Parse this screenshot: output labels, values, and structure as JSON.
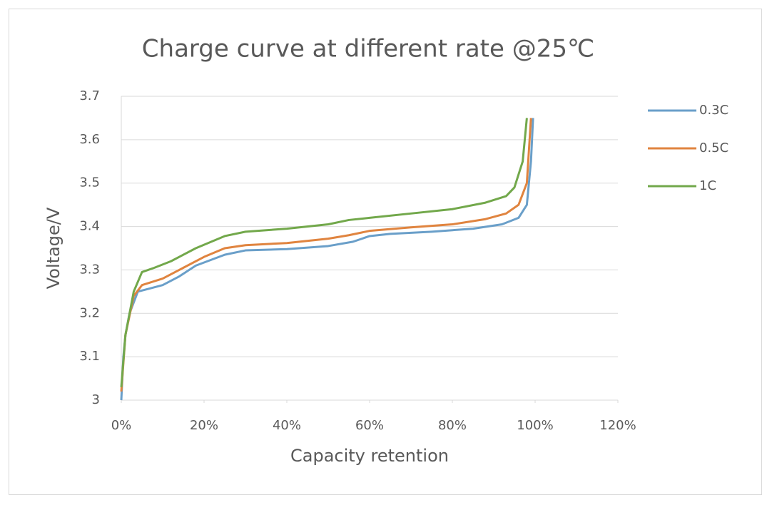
{
  "chart_data": {
    "type": "line",
    "title": "Charge curve at different rate @25℃",
    "x_label": "Capacity retention",
    "y_label": "Voltage/V",
    "xlim": [
      0,
      120
    ],
    "xticks": [
      {
        "value": 0,
        "label": "0%"
      },
      {
        "value": 20,
        "label": "20%"
      },
      {
        "value": 40,
        "label": "40%"
      },
      {
        "value": 60,
        "label": "60%"
      },
      {
        "value": 80,
        "label": "80%"
      },
      {
        "value": 100,
        "label": "100%"
      },
      {
        "value": 120,
        "label": "120%"
      }
    ],
    "ylim": [
      3,
      3.7
    ],
    "yticks": [
      3,
      3.1,
      3.2,
      3.3,
      3.4,
      3.5,
      3.6,
      3.7
    ],
    "grid": true,
    "legend": "right",
    "series": [
      {
        "name": "0.3C",
        "color": "#6a9fc9",
        "x": [
          0,
          0.5,
          1,
          2,
          4,
          6,
          10,
          14,
          18,
          25,
          30,
          40,
          50,
          56,
          60,
          65,
          75,
          85,
          92,
          96,
          98,
          99,
          99.5
        ],
        "values": [
          3.0,
          3.1,
          3.15,
          3.2,
          3.25,
          3.255,
          3.265,
          3.285,
          3.31,
          3.335,
          3.345,
          3.348,
          3.355,
          3.365,
          3.378,
          3.383,
          3.388,
          3.395,
          3.405,
          3.42,
          3.45,
          3.55,
          3.65
        ]
      },
      {
        "name": "0.5C",
        "color": "#e0843f",
        "x": [
          0,
          1,
          3,
          5,
          10,
          15,
          20,
          25,
          30,
          40,
          50,
          55,
          60,
          70,
          80,
          88,
          93,
          96,
          98,
          99
        ],
        "values": [
          3.02,
          3.15,
          3.24,
          3.265,
          3.28,
          3.305,
          3.33,
          3.35,
          3.357,
          3.362,
          3.372,
          3.38,
          3.39,
          3.398,
          3.405,
          3.417,
          3.43,
          3.45,
          3.5,
          3.65
        ]
      },
      {
        "name": "1C",
        "color": "#72a84b",
        "x": [
          0,
          1,
          3,
          5,
          8,
          12,
          18,
          25,
          30,
          40,
          50,
          55,
          60,
          70,
          80,
          88,
          93,
          95,
          97,
          98
        ],
        "values": [
          3.03,
          3.15,
          3.25,
          3.295,
          3.305,
          3.32,
          3.35,
          3.378,
          3.388,
          3.395,
          3.405,
          3.415,
          3.42,
          3.43,
          3.44,
          3.455,
          3.47,
          3.49,
          3.55,
          3.65
        ]
      }
    ]
  }
}
